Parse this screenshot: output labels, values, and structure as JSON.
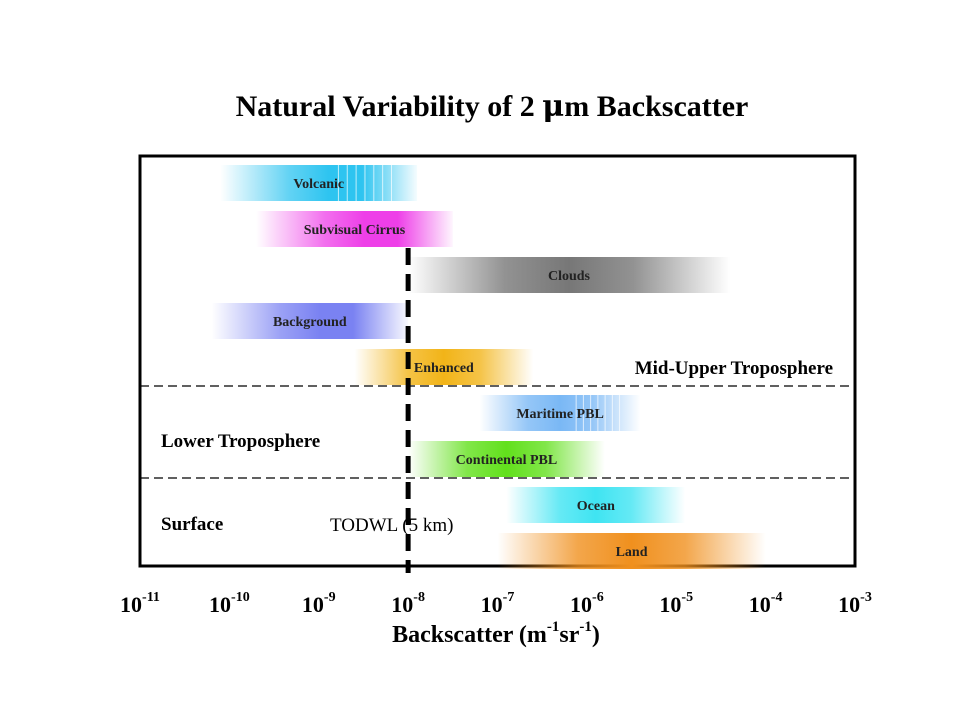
{
  "chart_data": {
    "type": "range-bar",
    "title_parts": [
      "Natural Variability of 2 ",
      "μ",
      "m Backscatter"
    ],
    "xlabel_parts": [
      {
        "text": "Backscatter (m",
        "sup": false
      },
      {
        "text": "-1",
        "sup": true
      },
      {
        "text": "sr",
        "sup": false
      },
      {
        "text": "-1",
        "sup": true
      },
      {
        "text": ")",
        "sup": false
      }
    ],
    "x_scale": "log",
    "xlim_exponent": [
      -11,
      -3
    ],
    "x_ticks": [
      {
        "base": "10",
        "exp": "-11",
        "value_exponent": -11
      },
      {
        "base": "10",
        "exp": "-10",
        "value_exponent": -10
      },
      {
        "base": "10",
        "exp": "-9",
        "value_exponent": -9
      },
      {
        "base": "10",
        "exp": "-8",
        "value_exponent": -8
      },
      {
        "base": "10",
        "exp": "-7",
        "value_exponent": -7
      },
      {
        "base": "10",
        "exp": "-6",
        "value_exponent": -6
      },
      {
        "base": "10",
        "exp": "-5",
        "value_exponent": -5
      },
      {
        "base": "10",
        "exp": "-4",
        "value_exponent": -4
      },
      {
        "base": "10",
        "exp": "-3",
        "value_exponent": -3
      }
    ],
    "bands": [
      {
        "label": "Volcanic",
        "range_exponent": [
          -10.1,
          -7.9
        ],
        "color": "#2ec4f0",
        "fade": "left",
        "stripes": true
      },
      {
        "label": "Subvisual Cirrus",
        "range_exponent": [
          -9.7,
          -7.5
        ],
        "color": "#ee3fe8",
        "fade": "left",
        "stripes": false
      },
      {
        "label": "Clouds",
        "range_exponent": [
          -8.0,
          -4.4
        ],
        "color": "#777777",
        "fade": "both",
        "stripes": false
      },
      {
        "label": "Background",
        "range_exponent": [
          -10.2,
          -8.0
        ],
        "color": "#7a82f2",
        "fade": "left",
        "stripes": false
      },
      {
        "label": "Enhanced",
        "range_exponent": [
          -8.6,
          -6.6
        ],
        "color": "#f2b418",
        "fade": "both",
        "stripes": false
      },
      {
        "label": "Maritime PBL",
        "range_exponent": [
          -7.2,
          -5.4
        ],
        "color": "#7ab8f5",
        "fade": "both",
        "stripes": true
      },
      {
        "label": "Continental PBL",
        "range_exponent": [
          -8.0,
          -5.8
        ],
        "color": "#62e01c",
        "fade": "both",
        "stripes": false
      },
      {
        "label": "Ocean",
        "range_exponent": [
          -6.9,
          -4.9
        ],
        "color": "#3fe4f2",
        "fade": "both",
        "stripes": false
      },
      {
        "label": "Land",
        "range_exponent": [
          -7.0,
          -4.0
        ],
        "color": "#f0901e",
        "fade": "both",
        "stripes": false
      }
    ],
    "regions": [
      "Mid-Upper Troposphere",
      "Lower Troposphere",
      "Surface"
    ],
    "reference_line": {
      "label": "TODWL (5 km)",
      "value_exponent": -8
    }
  }
}
